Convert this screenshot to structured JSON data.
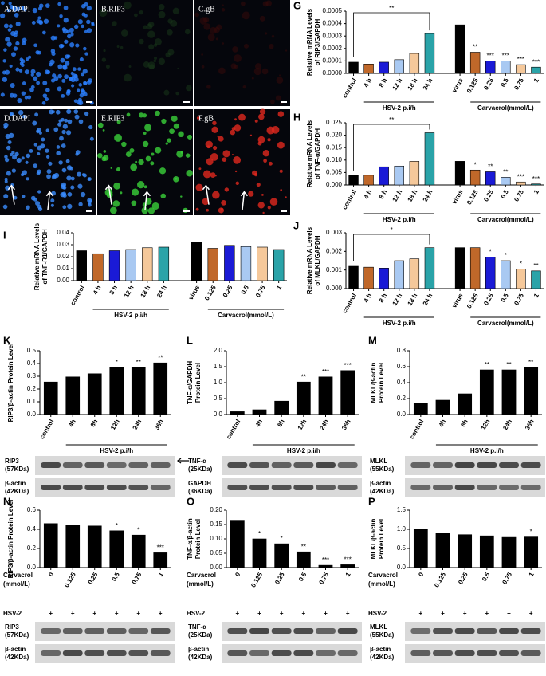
{
  "images": [
    {
      "label": "A.DAPI"
    },
    {
      "label": "B.RIP3"
    },
    {
      "label": "C.gB"
    },
    {
      "label": "D.DAPI"
    },
    {
      "label": "E.RIP3"
    },
    {
      "label": "F.gB"
    }
  ],
  "chart_data": [
    {
      "type": "bar",
      "panel": "G",
      "ylabel": [
        "Relative mRNA Levels",
        "of RIP3/GAPDH"
      ],
      "categories": [
        "control",
        "4 h",
        "8 h",
        "12 h",
        "18 h",
        "24 h",
        "virus",
        "0.125",
        "0.25",
        "0.5",
        "0.75",
        "1"
      ],
      "values": [
        9e-05,
        7.5e-05,
        9e-05,
        0.00011,
        0.00016,
        0.00032,
        0.00039,
        0.00017,
        0.0001,
        0.0001,
        7e-05,
        5e-05
      ],
      "colors": [
        "#000000",
        "#c0682a",
        "#1a1ad6",
        "#a9c9f2",
        "#f5c89a",
        "#2aa3a8",
        "#000000",
        "#c0682a",
        "#1a1ad6",
        "#a9c9f2",
        "#f5c89a",
        "#2aa3a8"
      ],
      "significance": [
        null,
        null,
        null,
        null,
        null,
        null,
        null,
        "**",
        "***",
        "***",
        "***",
        "***"
      ],
      "bracket": {
        "label": "**",
        "from": "control",
        "to": "24 h"
      },
      "groups": [
        {
          "name": "HSV-2 p.i/h",
          "from": "4 h",
          "to": "24 h"
        },
        {
          "name": "Carvacrol(mmol/L)",
          "from": "0.125",
          "to": "1"
        }
      ],
      "ylim": [
        0,
        0.0005
      ],
      "yticks": [
        {
          "value": 0,
          "label": "0.0000"
        },
        0.0001,
        0.0002,
        0.0003,
        0.0004,
        0.0005
      ]
    },
    {
      "type": "bar",
      "panel": "H",
      "ylabel": [
        "Relative mRNA Levels",
        "of TNF-α/GAPDH"
      ],
      "categories": [
        "control",
        "4 h",
        "8 h",
        "12 h",
        "18 h",
        "24 h",
        "virus",
        "0.125",
        "0.25",
        "0.5",
        "0.75",
        "1"
      ],
      "values": [
        0.0039,
        0.0039,
        0.0073,
        0.0076,
        0.0095,
        0.021,
        0.0095,
        0.006,
        0.0053,
        0.0031,
        0.0012,
        0.0004
      ],
      "colors": [
        "#000000",
        "#c0682a",
        "#1a1ad6",
        "#a9c9f2",
        "#f5c89a",
        "#2aa3a8",
        "#000000",
        "#c0682a",
        "#1a1ad6",
        "#a9c9f2",
        "#f5c89a",
        "#2aa3a8"
      ],
      "significance": [
        null,
        null,
        null,
        null,
        null,
        null,
        null,
        "*",
        "**",
        "**",
        "***",
        "***"
      ],
      "bracket": {
        "label": "**",
        "from": "control",
        "to": "24 h"
      },
      "groups": [
        {
          "name": "HSV-2 p.i/h",
          "from": "4 h",
          "to": "24 h"
        },
        {
          "name": "Carvacrol(mmol/L)",
          "from": "0.125",
          "to": "1"
        }
      ],
      "ylim": [
        0,
        0.025
      ],
      "yticks": [
        {
          "value": 0,
          "label": "0.000"
        },
        0.005,
        {
          "value": 0.01,
          "label": "0.010"
        },
        0.015,
        {
          "value": 0.02,
          "label": "0.020"
        },
        0.025
      ]
    },
    {
      "type": "bar",
      "panel": "I",
      "ylabel": [
        "Relative mRNA Levels",
        "of TNF-R1/GAPDH"
      ],
      "categories": [
        "control",
        "4 h",
        "8 h",
        "12 h",
        "18 h",
        "24 h",
        "virus",
        "0.125",
        "0.25",
        "0.5",
        "0.75",
        "1"
      ],
      "values": [
        0.025,
        0.0225,
        0.025,
        0.026,
        0.0275,
        0.028,
        0.032,
        0.027,
        0.0295,
        0.0285,
        0.028,
        0.026
      ],
      "colors": [
        "#000000",
        "#c0682a",
        "#1a1ad6",
        "#a9c9f2",
        "#f5c89a",
        "#2aa3a8",
        "#000000",
        "#c0682a",
        "#1a1ad6",
        "#a9c9f2",
        "#f5c89a",
        "#2aa3a8"
      ],
      "groups": [
        {
          "name": "HSV-2 p.i/h",
          "from": "4 h",
          "to": "24 h"
        },
        {
          "name": "Carvacrol(mmol/L)",
          "from": "0.125",
          "to": "1"
        }
      ],
      "ylim": [
        0,
        0.04
      ],
      "yticks": [
        {
          "value": 0,
          "label": "0.00"
        },
        0.01,
        0.02,
        0.03,
        0.04
      ]
    },
    {
      "type": "bar",
      "panel": "J",
      "ylabel": [
        "Relative mRNA Levels",
        "of MLKL/GAPDH"
      ],
      "categories": [
        "control",
        "4 h",
        "8 h",
        "12 h",
        "18 h",
        "24 h",
        "virus",
        "0.125",
        "0.25",
        "0.5",
        "0.75",
        "1"
      ],
      "values": [
        0.0012,
        0.00115,
        0.0011,
        0.0015,
        0.0016,
        0.0022,
        0.0022,
        0.0022,
        0.0017,
        0.0015,
        0.00105,
        0.00095
      ],
      "colors": [
        "#000000",
        "#c0682a",
        "#1a1ad6",
        "#a9c9f2",
        "#f5c89a",
        "#2aa3a8",
        "#000000",
        "#c0682a",
        "#1a1ad6",
        "#a9c9f2",
        "#f5c89a",
        "#2aa3a8"
      ],
      "significance": [
        null,
        null,
        null,
        null,
        null,
        null,
        null,
        null,
        "*",
        "*",
        "*",
        "**"
      ],
      "bracket": {
        "label": "*",
        "from": "control",
        "to": "24 h"
      },
      "groups": [
        {
          "name": "HSV-2 p.i/h",
          "from": "4 h",
          "to": "24 h"
        },
        {
          "name": "Carvacrol(mmol/L)",
          "from": "0.125",
          "to": "1"
        }
      ],
      "ylim": [
        0,
        0.003
      ],
      "yticks": [
        {
          "value": 0,
          "label": "0.000"
        },
        0.001,
        0.002,
        0.003
      ]
    },
    {
      "type": "bar",
      "panel": "K",
      "ylabel": [
        "RIP3/β-actin Protein Level"
      ],
      "color": "#000000",
      "categories": [
        "control",
        "4h",
        "8h",
        "12h",
        "24h",
        "36h"
      ],
      "values": [
        0.255,
        0.295,
        0.32,
        0.37,
        0.37,
        0.405
      ],
      "significance": [
        null,
        null,
        null,
        "*",
        "**",
        "**"
      ],
      "groups": [
        {
          "name": "HSV-2 p.i/h",
          "from": "4h",
          "to": "36h"
        }
      ],
      "blots": [
        {
          "name": "RIP3",
          "size": "(57KDa)"
        },
        {
          "name": "β-actin",
          "size": "(42KDa)"
        }
      ],
      "ylim": [
        0,
        0.5
      ],
      "yticks": [
        {
          "value": 0,
          "label": "0.0"
        },
        0.1,
        0.2,
        0.3,
        0.4,
        0.5
      ]
    },
    {
      "type": "bar",
      "panel": "L",
      "ylabel": [
        "TNF-α/GAPDH",
        "Protein Level"
      ],
      "color": "#000000",
      "categories": [
        "control",
        "4h",
        "8h",
        "12h",
        "24h",
        "36h"
      ],
      "values": [
        0.09,
        0.15,
        0.42,
        1.02,
        1.18,
        1.38
      ],
      "significance": [
        null,
        null,
        null,
        "**",
        "***",
        "***"
      ],
      "groups": [
        {
          "name": "HSV-2 p.i/h",
          "from": "4h",
          "to": "36h"
        }
      ],
      "blots": [
        {
          "name": "TNF-α",
          "size": "(25KDa)"
        },
        {
          "name": "GAPDH",
          "size": "(36KDa)"
        }
      ],
      "ylim": [
        0,
        2
      ],
      "yticks": [
        {
          "value": 0,
          "label": "0.0"
        },
        0.5,
        {
          "value": 1,
          "label": "1.0"
        },
        1.5,
        {
          "value": 2,
          "label": "2.0"
        }
      ]
    },
    {
      "type": "bar",
      "panel": "M",
      "ylabel": [
        "MLKL/β-actin",
        "Protein Level"
      ],
      "color": "#000000",
      "categories": [
        "control",
        "4h",
        "8h",
        "12h",
        "24h",
        "36h"
      ],
      "values": [
        0.14,
        0.18,
        0.26,
        0.56,
        0.56,
        0.59
      ],
      "significance": [
        null,
        null,
        null,
        "**",
        "**",
        "**"
      ],
      "groups": [
        {
          "name": "HSV-2 p.i/h",
          "from": "4h",
          "to": "36h"
        }
      ],
      "blots": [
        {
          "name": "MLKL",
          "size": "(55KDa)"
        },
        {
          "name": "β-actin",
          "size": "(42KDa)"
        }
      ],
      "ylim": [
        0,
        0.8
      ],
      "yticks": [
        {
          "value": 0,
          "label": "0.0"
        },
        0.2,
        0.4,
        0.6,
        0.8
      ]
    },
    {
      "type": "bar",
      "panel": "N",
      "ylabel": [
        "RIP3/β-actin Protein Level"
      ],
      "color": "#000000",
      "categories": [
        "0",
        "0.125",
        "0.25",
        "0.5",
        "0.75",
        "1"
      ],
      "values": [
        0.46,
        0.44,
        0.435,
        0.385,
        0.34,
        0.155
      ],
      "significance": [
        null,
        null,
        null,
        "*",
        "*",
        "***"
      ],
      "xlabel": [
        "Carvacrol",
        "(mmol/L)"
      ],
      "hsv": {
        "name": "HSV-2",
        "marks": [
          "+",
          "+",
          "+",
          "+",
          "+",
          "+"
        ]
      },
      "blots": [
        {
          "name": "RIP3",
          "size": "(57KDa)"
        },
        {
          "name": "β-actin",
          "size": "(42KDa)"
        }
      ],
      "ylim": [
        0,
        0.6
      ],
      "yticks": [
        {
          "value": 0,
          "label": "0.0"
        },
        0.2,
        0.4,
        0.6
      ]
    },
    {
      "type": "bar",
      "panel": "O",
      "ylabel": [
        "TNF-α/β-actin",
        "Protein Level"
      ],
      "color": "#000000",
      "categories": [
        "0",
        "0.125",
        "0.25",
        "0.5",
        "0.75",
        "1"
      ],
      "values": [
        0.165,
        0.1,
        0.083,
        0.055,
        0.008,
        0.01
      ],
      "significance": [
        null,
        "*",
        "*",
        "**",
        "***",
        "***"
      ],
      "xlabel": [
        "Carvacrol",
        "(mmol/L)"
      ],
      "hsv": {
        "name": "HSV-2",
        "marks": [
          "+",
          "+",
          "+",
          "+",
          "+",
          "+"
        ]
      },
      "blots": [
        {
          "name": "TNF-α",
          "size": "(25KDa)"
        },
        {
          "name": "β-actin",
          "size": "(42KDa)"
        }
      ],
      "ylim": [
        0,
        0.2
      ],
      "yticks": [
        {
          "value": 0,
          "label": "0.00"
        },
        0.05,
        {
          "value": 0.1,
          "label": "0.10"
        },
        0.15,
        {
          "value": 0.2,
          "label": "0.20"
        }
      ]
    },
    {
      "type": "bar",
      "panel": "P",
      "ylabel": [
        "MLKL/β-actin",
        "Protein Level"
      ],
      "color": "#000000",
      "categories": [
        "0",
        "0.125",
        "0.25",
        "0.5",
        "0.75",
        "1"
      ],
      "values": [
        1.0,
        0.89,
        0.86,
        0.83,
        0.79,
        0.8
      ],
      "significance": [
        null,
        null,
        null,
        null,
        null,
        "*"
      ],
      "xlabel": [
        "Carvacrol",
        "(mmol/L)"
      ],
      "hsv": {
        "name": "HSV-2",
        "marks": [
          "+",
          "+",
          "+",
          "+",
          "+",
          "+"
        ]
      },
      "blots": [
        {
          "name": "MLKL",
          "size": "(55KDa)"
        },
        {
          "name": "β-actin",
          "size": "(42KDa)"
        }
      ],
      "ylim": [
        0,
        1.5
      ],
      "yticks": [
        {
          "value": 0,
          "label": "0.0"
        },
        0.5,
        {
          "value": 1,
          "label": "1.0"
        },
        1.5
      ]
    }
  ]
}
